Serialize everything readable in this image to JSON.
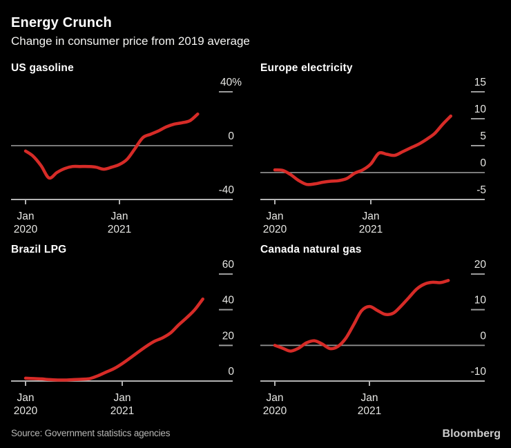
{
  "header": {
    "title": "Energy Crunch",
    "subtitle": "Change in consumer price from 2019 average"
  },
  "footer": {
    "source": "Source: Government statistics agencies",
    "brand": "Bloomberg"
  },
  "colors": {
    "background": "#000000",
    "line_red": "#d62b27",
    "axis": "#b3b3b3",
    "grid": "#8d8d8d",
    "tick": "#9d9d9d",
    "tick_label": "#e6e6e3",
    "title": "#ffffff",
    "source_text": "#b8b8b6"
  },
  "chart_data": [
    {
      "type": "line",
      "title": "US gasoline",
      "ylabel": "% change vs 2019 average",
      "ylim": [
        -40,
        40
      ],
      "x": [
        "2020-01",
        "2020-02",
        "2020-03",
        "2020-04",
        "2020-05",
        "2020-06",
        "2020-07",
        "2020-08",
        "2020-09",
        "2020-10",
        "2020-11",
        "2020-12",
        "2021-01",
        "2021-02",
        "2021-03",
        "2021-04",
        "2021-05",
        "2021-06",
        "2021-07",
        "2021-08",
        "2021-09",
        "2021-10",
        "2021-11"
      ],
      "values": [
        -4,
        -8,
        -15,
        -24,
        -20,
        -17,
        -15.5,
        -15.5,
        -15.5,
        -16,
        -17.5,
        -16,
        -14,
        -10,
        -2,
        6,
        8.5,
        11,
        14,
        16,
        17,
        18.5,
        23.5
      ],
      "y_ticks": [
        {
          "value": 40,
          "label": "40%",
          "kind": "tick"
        },
        {
          "value": 0,
          "label": "0",
          "kind": "zero"
        },
        {
          "value": -40,
          "label": "-40",
          "kind": "base"
        }
      ],
      "x_ticks": [
        {
          "index": 0,
          "line1": "Jan",
          "line2": "2020"
        },
        {
          "index": 12,
          "line1": "Jan",
          "line2": "2021"
        }
      ]
    },
    {
      "type": "line",
      "title": "Europe electricity",
      "ylabel": "% change vs 2019 average",
      "ylim": [
        -5,
        15
      ],
      "x": [
        "2020-01",
        "2020-02",
        "2020-03",
        "2020-04",
        "2020-05",
        "2020-06",
        "2020-07",
        "2020-08",
        "2020-09",
        "2020-10",
        "2020-11",
        "2020-12",
        "2021-01",
        "2021-02",
        "2021-03",
        "2021-04",
        "2021-05",
        "2021-06",
        "2021-07",
        "2021-08",
        "2021-09",
        "2021-10",
        "2021-11"
      ],
      "values": [
        0.5,
        0.4,
        -0.4,
        -1.5,
        -2.2,
        -2.1,
        -1.8,
        -1.6,
        -1.5,
        -1.1,
        -0.1,
        0.5,
        1.6,
        3.6,
        3.4,
        3.2,
        3.9,
        4.6,
        5.3,
        6.2,
        7.3,
        9.0,
        10.5
      ],
      "y_ticks": [
        {
          "value": 15,
          "label": "15",
          "kind": "tick"
        },
        {
          "value": 10,
          "label": "10",
          "kind": "tick"
        },
        {
          "value": 5,
          "label": "5",
          "kind": "tick"
        },
        {
          "value": 0,
          "label": "0",
          "kind": "zero"
        },
        {
          "value": -5,
          "label": "-5",
          "kind": "base"
        }
      ],
      "x_ticks": [
        {
          "index": 0,
          "line1": "Jan",
          "line2": "2020"
        },
        {
          "index": 12,
          "line1": "Jan",
          "line2": "2021"
        }
      ]
    },
    {
      "type": "line",
      "title": "Brazil LPG",
      "ylabel": "% change vs 2019 average",
      "ylim": [
        0,
        60
      ],
      "x": [
        "2020-01",
        "2020-02",
        "2020-03",
        "2020-04",
        "2020-05",
        "2020-06",
        "2020-07",
        "2020-08",
        "2020-09",
        "2020-10",
        "2020-11",
        "2020-12",
        "2021-01",
        "2021-02",
        "2021-03",
        "2021-04",
        "2021-05",
        "2021-06",
        "2021-07",
        "2021-08",
        "2021-09",
        "2021-10",
        "2021-11"
      ],
      "values": [
        1.6,
        1.4,
        1.2,
        0.8,
        0.6,
        0.6,
        0.8,
        1.0,
        1.4,
        3.0,
        5.0,
        7.0,
        9.8,
        13.0,
        16.3,
        19.5,
        22.3,
        24.2,
        27.0,
        31.5,
        35.5,
        40.0,
        46.0
      ],
      "y_ticks": [
        {
          "value": 60,
          "label": "60",
          "kind": "tick"
        },
        {
          "value": 40,
          "label": "40",
          "kind": "tick"
        },
        {
          "value": 20,
          "label": "20",
          "kind": "tick"
        },
        {
          "value": 0,
          "label": "0",
          "kind": "base"
        }
      ],
      "x_ticks": [
        {
          "index": 0,
          "line1": "Jan",
          "line2": "2020"
        },
        {
          "index": 12,
          "line1": "Jan",
          "line2": "2021"
        }
      ]
    },
    {
      "type": "line",
      "title": "Canada natural gas",
      "ylabel": "% change vs 2019 average",
      "ylim": [
        -10,
        20
      ],
      "x": [
        "2020-01",
        "2020-02",
        "2020-03",
        "2020-04",
        "2020-05",
        "2020-06",
        "2020-07",
        "2020-08",
        "2020-09",
        "2020-10",
        "2020-11",
        "2020-12",
        "2021-01",
        "2021-02",
        "2021-03",
        "2021-04",
        "2021-05",
        "2021-06",
        "2021-07",
        "2021-08",
        "2021-09",
        "2021-10",
        "2021-11"
      ],
      "values": [
        0.0,
        -0.8,
        -1.6,
        -0.8,
        0.7,
        1.3,
        0.4,
        -0.9,
        -0.3,
        2.0,
        5.8,
        9.7,
        10.9,
        9.8,
        8.7,
        9.0,
        11.0,
        13.4,
        15.8,
        17.2,
        17.7,
        17.6,
        18.2
      ],
      "y_ticks": [
        {
          "value": 20,
          "label": "20",
          "kind": "tick"
        },
        {
          "value": 10,
          "label": "10",
          "kind": "tick"
        },
        {
          "value": 0,
          "label": "0",
          "kind": "zero"
        },
        {
          "value": -10,
          "label": "-10",
          "kind": "base"
        }
      ],
      "x_ticks": [
        {
          "index": 0,
          "line1": "Jan",
          "line2": "2020"
        },
        {
          "index": 12,
          "line1": "Jan",
          "line2": "2021"
        }
      ]
    }
  ]
}
